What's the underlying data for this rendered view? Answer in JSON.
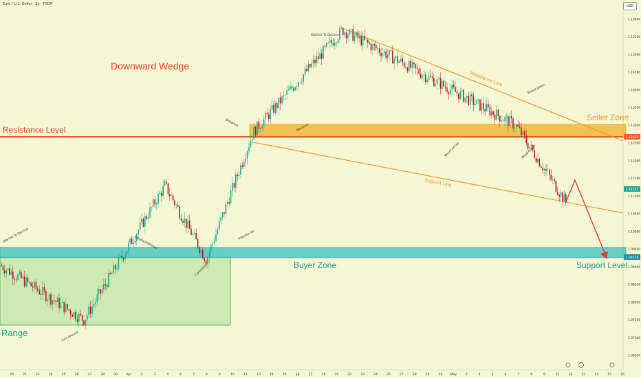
{
  "header": {
    "symbol": "Euro / U.S. Dollar · 2h · FXCM",
    "currency": "USD"
  },
  "colors": {
    "background": "#f4f6d4",
    "candle_up": "#26a69a",
    "candle_down": "#b71c1c",
    "resistance_level": "#ef5a2a",
    "seller_zone": "#f0b93a",
    "buyer_zone": "#4ec7c0",
    "range_box": "#bfe5a6",
    "wedge_lines": "#f39a2e",
    "projection": "#e53935"
  },
  "chart_data": {
    "type": "candlestick",
    "title": "Downward Wedge",
    "ylim": [
      1.06,
      1.165
    ],
    "y_ticks": [
      "1.16000",
      "1.15500",
      "1.15000",
      "1.14500",
      "1.14000",
      "1.13500",
      "1.13000",
      "1.12500",
      "1.12000",
      "1.11500",
      "1.11000",
      "1.10500",
      "1.10000",
      "1.09500",
      "1.09000",
      "1.08500",
      "1.08000",
      "1.07500",
      "1.07000",
      "1.06500"
    ],
    "x_ticks": [
      "20",
      "21",
      "23",
      "24",
      "25",
      "26",
      "27",
      "28",
      "30",
      "Apr",
      "2",
      "3",
      "4",
      "6",
      "7",
      "8",
      "9",
      "10",
      "11",
      "13",
      "14",
      "15",
      "16",
      "17",
      "18",
      "20",
      "22",
      "23",
      "24",
      "25",
      "27",
      "28",
      "29",
      "30",
      "May",
      "2",
      "4",
      "5",
      "6",
      "7",
      "8",
      "9",
      "11",
      "12",
      "13",
      "14",
      "15",
      "16"
    ],
    "price_labels": {
      "resistance": "1.12650",
      "current": "1.11157",
      "buyer": "1.09256"
    },
    "levels": {
      "resistance_level": 1.1264,
      "seller_zone": [
        1.1266,
        1.13
      ],
      "buyer_zone": [
        1.0926,
        1.0948
      ]
    },
    "annotations": {
      "title": "Downward Wedge",
      "resistance_level": "Resistance Level",
      "seller_zone": "Seller Zone",
      "buyer_zone": "Buyer Zone",
      "support_level": "Support Level",
      "range": "Range",
      "resistance_line": "Resistance Line",
      "support_line": "Support Line",
      "started_to_decline_1": "Started To Decline",
      "started_to_decline_2": "Started To Decline",
      "turn_around": "Turn Around",
      "breakout_retest": "Breakout&Retest",
      "correction": "Correction",
      "impulse_up": "Impulse Up",
      "breakout": "Breakout",
      "reversal": "Reversal",
      "bounced_up": "Bounced Up",
      "rolled_down": "Rolled Down",
      "breakdown": "Breakdown"
    },
    "key_points": [
      {
        "x": "Mar 20",
        "y": 1.0905
      },
      {
        "x": "Mar 27",
        "y": 1.075
      },
      {
        "x": "Apr 3",
        "y": 1.113
      },
      {
        "x": "Apr 8",
        "y": 1.092
      },
      {
        "x": "Apr 11",
        "y": 1.128
      },
      {
        "x": "Apr 21",
        "y": 1.157
      },
      {
        "x": "May 6",
        "y": 1.13
      },
      {
        "x": "May 12",
        "y": 1.108
      }
    ]
  }
}
